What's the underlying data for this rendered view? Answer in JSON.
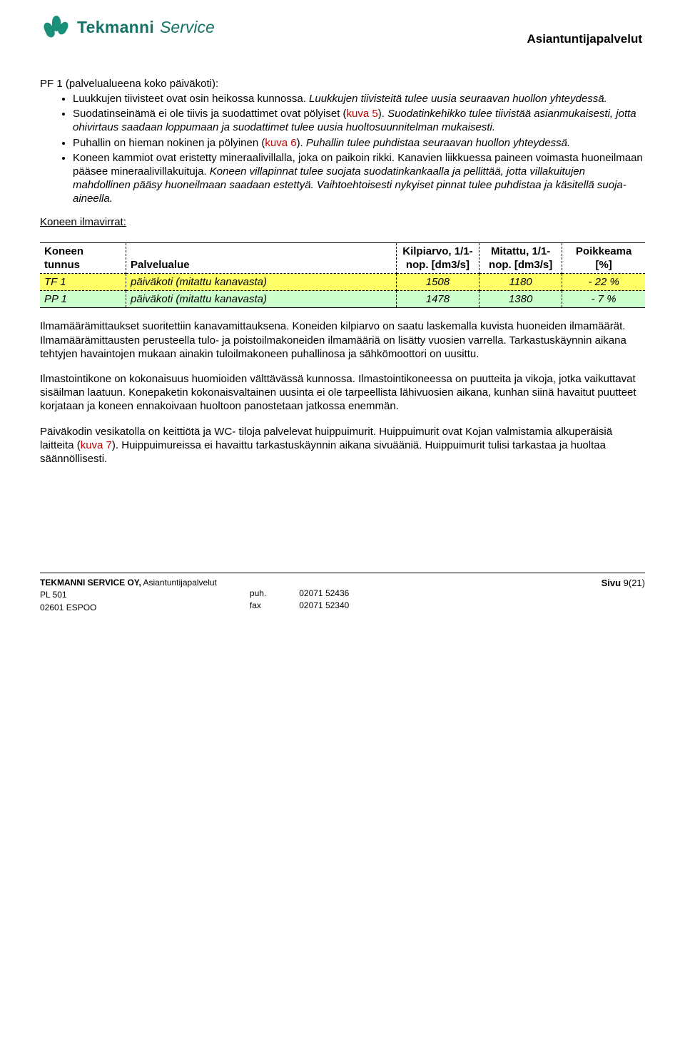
{
  "header": {
    "logo_word1": "Tekmanni",
    "logo_word2": "Service",
    "right_title": "Asiantuntijapalvelut"
  },
  "title": "PF 1 (palvelualueena koko päiväkoti):",
  "bullets": {
    "b1_a": "Luukkujen tiivisteet ovat osin heikossa kunnossa. ",
    "b1_b": "Luukkujen tiivisteitä tulee uusia seuraavan huollon yhteydessä.",
    "b2_a": "Suodatinseinämä ei ole tiivis ja suodattimet ovat pölyiset (",
    "b2_kuva": "kuva 5",
    "b2_b": "). ",
    "b2_c": "Suodatinkehikko tulee tiivistää asianmukaisesti, jotta ohivirtaus saadaan loppumaan ja suodattimet tulee uusia huoltosuunnitelman mukaisesti.",
    "b3_a": "Puhallin on hieman nokinen ja pölyinen (",
    "b3_kuva": "kuva 6",
    "b3_b": "). ",
    "b3_c": "Puhallin tulee puhdistaa seuraavan huollon yhteydessä.",
    "b4_a": "Koneen kammiot ovat eristetty mineraalivillalla, joka on paikoin rikki. Kanavien liikkuessa paineen voimasta huoneilmaan pääsee mineraalivillakuituja. ",
    "b4_b": "Koneen villapinnat tulee suojata suodatinkankaalla ja pellittää, jotta villakuitujen mahdollinen pääsy huoneilmaan saadaan estettyä. Vaihtoehtoisesti nykyiset pinnat tulee puhdistaa ja käsitellä suoja-aineella."
  },
  "subhead": "Koneen ilmavirrat:",
  "table": {
    "columns": {
      "c1a": "Koneen",
      "c1b": "tunnus",
      "c2": "Palvelualue",
      "c3a": "Kilpiarvo, 1/1-",
      "c3b": "nop. [dm3/s]",
      "c4a": "Mitattu, 1/1-",
      "c4b": "nop. [dm3/s]",
      "c5a": "Poikkeama",
      "c5b": "[%]"
    },
    "rows": [
      {
        "id": "TF 1",
        "area": "päiväkoti (mitattu kanavasta)",
        "kilpi": "1508",
        "mit": "1180",
        "poik": "- 22 %",
        "bg": "#ffff66"
      },
      {
        "id": "PP 1",
        "area": "päiväkoti (mitattu kanavasta)",
        "kilpi": "1478",
        "mit": "1380",
        "poik": "- 7 %",
        "bg": "#ccffcc"
      }
    ]
  },
  "p1": "Ilmamäärämittaukset suoritettiin kanavamittauksena. Koneiden kilpiarvo on saatu laskemalla kuvista huoneiden ilmamäärät. Ilmamäärämittausten perusteella tulo- ja poistoilmakoneiden ilmamääriä on lisätty vuosien varrella. Tarkastuskäynnin aikana tehtyjen havaintojen mukaan ainakin tuloilmakoneen puhallinosa ja sähkömoottori on uusittu.",
  "p2": "Ilmastointikone on kokonaisuus huomioiden välttävässä kunnossa. Ilmastointikoneessa on puutteita ja vikoja, jotka vaikuttavat sisäilman laatuun. Konepaketin kokonaisvaltainen uusinta ei ole tarpeellista lähivuosien aikana, kunhan siinä havaitut puutteet korjataan ja koneen ennakoivaan huoltoon panostetaan jatkossa enemmän.",
  "p3_a": "Päiväkodin vesikatolla on keittiötä ja WC- tiloja palvelevat huippuimurit.  Huippuimurit ovat Kojan valmistamia alkuperäisiä laitteita (",
  "p3_kuva": "kuva 7",
  "p3_b": "). Huippuimureissa ei havaittu tarkastuskäynnin aikana sivuääniä. Huippuimurit tulisi tarkastaa ja huoltaa säännöllisesti.",
  "footer": {
    "company_bold": "TEKMANNI SERVICE OY,",
    "company_rest": " Asiantuntijapalvelut",
    "addr1": "PL 501",
    "addr2": "02601 ESPOO",
    "lbl_puh": "puh.",
    "lbl_fax": "fax",
    "puh": "02071 52436",
    "fax": "02071 52340",
    "page_word": "Sivu",
    "page_num": " 9(21)"
  }
}
